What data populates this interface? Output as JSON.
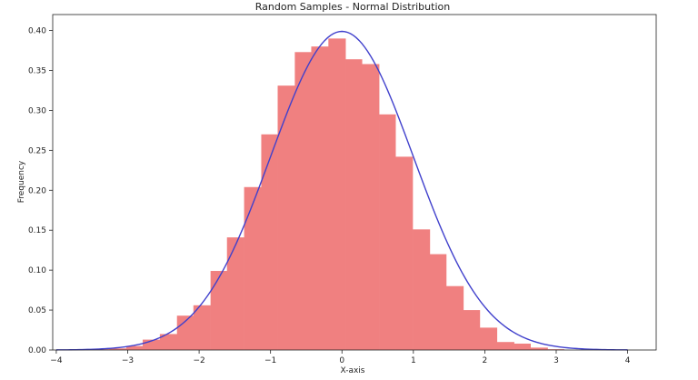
{
  "chart_data": {
    "type": "bar",
    "title": "Random Samples - Normal Distribution",
    "xlabel": "X-axis",
    "ylabel": "Frequency",
    "xlim": [
      -4.05,
      4.4
    ],
    "ylim": [
      0,
      0.42
    ],
    "xticks": [
      -4,
      -3,
      -2,
      -1,
      0,
      1,
      2,
      3,
      4
    ],
    "xtick_labels": [
      "−4",
      "−3",
      "−2",
      "−1",
      "0",
      "1",
      "2",
      "3",
      "4"
    ],
    "yticks": [
      0,
      0.05,
      0.1,
      0.15,
      0.2,
      0.25,
      0.3,
      0.35,
      0.4
    ],
    "ytick_labels": [
      "0.00",
      "0.05",
      "0.10",
      "0.15",
      "0.20",
      "0.25",
      "0.30",
      "0.35",
      "0.40"
    ],
    "grid": false,
    "histogram": {
      "color": "#f08080",
      "bins": [
        {
          "x0": -3.49,
          "x1": -3.26,
          "y": 0.001
        },
        {
          "x0": -3.26,
          "x1": -3.02,
          "y": 0.002
        },
        {
          "x0": -3.02,
          "x1": -2.79,
          "y": 0.005
        },
        {
          "x0": -2.79,
          "x1": -2.55,
          "y": 0.013
        },
        {
          "x0": -2.55,
          "x1": -2.31,
          "y": 0.02
        },
        {
          "x0": -2.31,
          "x1": -2.08,
          "y": 0.043
        },
        {
          "x0": -2.08,
          "x1": -1.84,
          "y": 0.056
        },
        {
          "x0": -1.84,
          "x1": -1.61,
          "y": 0.099
        },
        {
          "x0": -1.61,
          "x1": -1.37,
          "y": 0.141
        },
        {
          "x0": -1.37,
          "x1": -1.13,
          "y": 0.204
        },
        {
          "x0": -1.13,
          "x1": -0.9,
          "y": 0.27
        },
        {
          "x0": -0.9,
          "x1": -0.66,
          "y": 0.331
        },
        {
          "x0": -0.66,
          "x1": -0.43,
          "y": 0.373
        },
        {
          "x0": -0.43,
          "x1": -0.19,
          "y": 0.38
        },
        {
          "x0": -0.19,
          "x1": 0.05,
          "y": 0.39
        },
        {
          "x0": 0.05,
          "x1": 0.28,
          "y": 0.364
        },
        {
          "x0": 0.28,
          "x1": 0.52,
          "y": 0.358
        },
        {
          "x0": 0.52,
          "x1": 0.75,
          "y": 0.295
        },
        {
          "x0": 0.75,
          "x1": 0.99,
          "y": 0.242
        },
        {
          "x0": 0.99,
          "x1": 1.23,
          "y": 0.151
        },
        {
          "x0": 1.23,
          "x1": 1.46,
          "y": 0.12
        },
        {
          "x0": 1.46,
          "x1": 1.7,
          "y": 0.08
        },
        {
          "x0": 1.7,
          "x1": 1.93,
          "y": 0.05
        },
        {
          "x0": 1.93,
          "x1": 2.17,
          "y": 0.028
        },
        {
          "x0": 2.17,
          "x1": 2.41,
          "y": 0.01
        },
        {
          "x0": 2.41,
          "x1": 2.64,
          "y": 0.008
        },
        {
          "x0": 2.64,
          "x1": 2.88,
          "y": 0.003
        },
        {
          "x0": 2.88,
          "x1": 3.11,
          "y": 0.001
        }
      ]
    },
    "curve": {
      "type": "line",
      "color": "#4040cc",
      "function": "normal_pdf",
      "mean": 0,
      "std": 1,
      "x_range": [
        -4,
        4
      ]
    }
  }
}
